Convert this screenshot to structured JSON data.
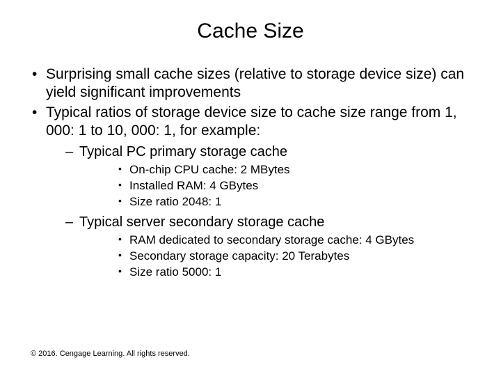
{
  "title": "Cache Size",
  "bullets": {
    "b1": "Surprising small cache sizes (relative to storage device size) can yield significant improvements",
    "b2": "Typical ratios of storage device size to cache size range from 1, 000: 1 to 10, 000: 1, for example:",
    "b2a": "Typical PC primary storage cache",
    "b2a1": "On-chip CPU cache: 2 MBytes",
    "b2a2": "Installed RAM: 4 GBytes",
    "b2a3": "Size ratio 2048: 1",
    "b2b": "Typical server secondary storage cache",
    "b2b1": "RAM dedicated to secondary storage cache: 4 GBytes",
    "b2b2": "Secondary storage capacity: 20 Terabytes",
    "b2b3": "Size ratio 5000: 1"
  },
  "footer": "© 2016. Cengage Learning. All rights reserved.",
  "colors": {
    "background": "#ffffff",
    "text": "#000000"
  },
  "typography": {
    "font_family": "Arial",
    "title_fontsize": 30,
    "lvl1_fontsize": 21,
    "lvl2_fontsize": 20,
    "lvl3_fontsize": 17,
    "footer_fontsize": 11
  }
}
